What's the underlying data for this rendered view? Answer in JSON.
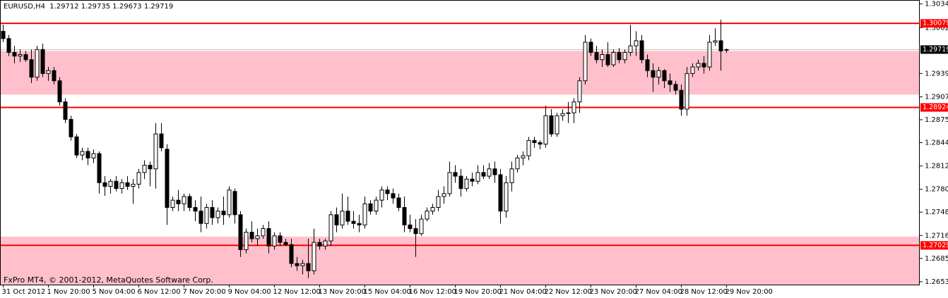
{
  "chart_data": {
    "type": "candlestick",
    "symbol": "EURUSD,H4",
    "watermark": "FxPro MT4, © 2001-2012, MetaQuotes Software Corp.",
    "categories": [
      "31 Oct 2012",
      null,
      null,
      null,
      null,
      null,
      null,
      null,
      "1 Nov 20:00",
      null,
      null,
      null,
      null,
      null,
      null,
      null,
      "5 Nov 04:00",
      null,
      null,
      null,
      null,
      null,
      null,
      null,
      "6 Nov 12:00",
      null,
      null,
      null,
      null,
      null,
      null,
      null,
      "7 Nov 20:00",
      null,
      null,
      null,
      null,
      null,
      null,
      null,
      "9 Nov 04:00",
      null,
      null,
      null,
      null,
      null,
      null,
      null,
      "12 Nov 12:00",
      null,
      null,
      null,
      null,
      null,
      null,
      null,
      "13 Nov 20:00",
      null,
      null,
      null,
      null,
      null,
      null,
      null,
      "15 Nov 04:00",
      null,
      null,
      null,
      null,
      null,
      null,
      null,
      "16 Nov 12:00",
      null,
      null,
      null,
      null,
      null,
      null,
      null,
      "19 Nov 20:00",
      null,
      null,
      null,
      null,
      null,
      null,
      null,
      "21 Nov 04:00",
      null,
      null,
      null,
      null,
      null,
      null,
      null,
      "22 Nov 12:00",
      null,
      null,
      null,
      null,
      null,
      null,
      null,
      "23 Nov 20:00",
      null,
      null,
      null,
      null,
      null,
      null,
      null,
      "27 Nov 04:00",
      null,
      null,
      null,
      null,
      null,
      null,
      null,
      "28 Nov 12:00",
      null,
      null,
      null,
      null,
      null,
      null,
      null,
      "29 Nov 20:00"
    ],
    "open": [
      1.2997,
      1.2987,
      1.2968,
      1.2963,
      1.2965,
      1.2958,
      1.2934,
      1.2972,
      1.2939,
      1.2943,
      1.2929,
      1.29,
      1.2876,
      1.2852,
      1.2827,
      1.2832,
      1.2823,
      1.2829,
      1.2789,
      1.2784,
      1.2791,
      1.2781,
      1.2789,
      1.2784,
      1.2787,
      1.2803,
      1.2813,
      1.2808,
      1.2856,
      1.2835,
      1.2755,
      1.2765,
      1.276,
      1.277,
      1.2755,
      1.275,
      1.2733,
      1.2755,
      1.2741,
      1.275,
      1.2745,
      1.2777,
      1.2745,
      1.2697,
      1.2721,
      1.2712,
      1.2716,
      1.2726,
      1.2702,
      1.2716,
      1.2707,
      1.2704,
      1.2678,
      1.2675,
      1.2678,
      1.2668,
      1.2707,
      1.2702,
      1.2709,
      1.2745,
      1.2731,
      1.275,
      1.2736,
      1.2733,
      1.2731,
      1.276,
      1.275,
      1.2765,
      1.2779,
      1.2774,
      1.2768,
      1.2755,
      1.2731,
      1.2726,
      1.2719,
      1.2739,
      1.275,
      1.2755,
      1.277,
      1.2774,
      1.2803,
      1.2798,
      1.2781,
      1.2794,
      1.2791,
      1.2803,
      1.2798,
      1.2808,
      1.28,
      1.275,
      1.2789,
      1.2808,
      1.2823,
      1.2826,
      1.2847,
      1.2844,
      1.2842,
      1.2881,
      1.2856,
      1.2881,
      1.2884,
      1.2885,
      1.29,
      1.2929,
      1.2982,
      1.2968,
      1.2958,
      1.2965,
      1.2951,
      1.2968,
      1.2958,
      1.2968,
      1.2977,
      1.2984,
      1.2958,
      1.2943,
      1.2934,
      1.2943,
      1.2929,
      1.2924,
      1.2916,
      1.289,
      1.2939,
      1.2948,
      1.2953,
      1.2948,
      1.2982,
      1.2984,
      1.29712
    ],
    "high": [
      1.3006,
      1.2992,
      1.2977,
      1.2972,
      1.297,
      1.2972,
      1.2977,
      1.298,
      1.2948,
      1.2948,
      1.2934,
      1.2905,
      1.2881,
      1.2856,
      1.2837,
      1.2837,
      1.2835,
      1.2832,
      1.2798,
      1.2794,
      1.2798,
      1.2794,
      1.2798,
      1.2794,
      1.2808,
      1.282,
      1.2818,
      1.2871,
      1.2871,
      1.2842,
      1.277,
      1.2779,
      1.2774,
      1.2774,
      1.2765,
      1.277,
      1.276,
      1.2765,
      1.2755,
      1.277,
      1.2784,
      1.2781,
      1.275,
      1.2726,
      1.2736,
      1.2726,
      1.2731,
      1.2736,
      1.2721,
      1.2721,
      1.2712,
      1.2712,
      1.2687,
      1.2683,
      1.2712,
      1.2726,
      1.2712,
      1.2712,
      1.275,
      1.2755,
      1.2774,
      1.277,
      1.275,
      1.2745,
      1.277,
      1.2765,
      1.277,
      1.2784,
      1.2784,
      1.2781,
      1.2774,
      1.277,
      1.2745,
      1.2739,
      1.2745,
      1.2755,
      1.276,
      1.2779,
      1.2784,
      1.2818,
      1.2813,
      1.2808,
      1.2798,
      1.2803,
      1.2813,
      1.2813,
      1.2816,
      1.2818,
      1.2808,
      1.2798,
      1.2818,
      1.2827,
      1.2832,
      1.2852,
      1.2852,
      1.2847,
      1.2895,
      1.289,
      1.2885,
      1.289,
      1.29,
      1.2905,
      1.2934,
      1.2992,
      1.2987,
      1.2977,
      1.2972,
      1.2982,
      1.2972,
      1.2974,
      1.2972,
      1.3006,
      1.2997,
      1.2992,
      1.2965,
      1.2953,
      1.2948,
      1.2945,
      1.2939,
      1.2929,
      1.2924,
      1.2948,
      1.2953,
      1.2958,
      1.2963,
      1.2992,
      1.3001,
      1.3013,
      1.29735
    ],
    "low": [
      1.2982,
      1.2963,
      1.2953,
      1.2955,
      1.2955,
      1.2926,
      1.2929,
      1.2934,
      1.2929,
      1.2924,
      1.2895,
      1.2871,
      1.2847,
      1.2823,
      1.282,
      1.2813,
      1.2816,
      1.2774,
      1.2771,
      1.2774,
      1.2777,
      1.2774,
      1.2779,
      1.276,
      1.2781,
      1.2794,
      1.2784,
      1.2781,
      1.2832,
      1.2731,
      1.275,
      1.275,
      1.275,
      1.275,
      1.2736,
      1.2721,
      1.2726,
      1.2731,
      1.2733,
      1.2731,
      1.2741,
      1.2733,
      1.2687,
      1.2692,
      1.2707,
      1.2702,
      1.2712,
      1.2692,
      1.2697,
      1.2702,
      1.2702,
      1.2673,
      1.2668,
      1.2663,
      1.2658,
      1.2663,
      1.2697,
      1.2697,
      1.2702,
      1.2721,
      1.2726,
      1.2731,
      1.2726,
      1.2721,
      1.2726,
      1.2745,
      1.2745,
      1.2755,
      1.2765,
      1.276,
      1.275,
      1.2721,
      1.2721,
      1.2687,
      1.2716,
      1.2736,
      1.2745,
      1.275,
      1.276,
      1.277,
      1.2789,
      1.277,
      1.2777,
      1.2784,
      1.2787,
      1.2794,
      1.2794,
      1.2789,
      1.2733,
      1.2741,
      1.2777,
      1.2803,
      1.2813,
      1.282,
      1.2837,
      1.2835,
      1.2837,
      1.2852,
      1.2852,
      1.2874,
      1.2871,
      1.2871,
      1.2885,
      1.2924,
      1.2963,
      1.2953,
      1.2948,
      1.2948,
      1.2948,
      1.2953,
      1.2953,
      1.2963,
      1.2963,
      1.2953,
      1.2934,
      1.2914,
      1.2924,
      1.2919,
      1.2914,
      1.291,
      1.2881,
      1.2881,
      1.2934,
      1.2943,
      1.2939,
      1.2943,
      1.2977,
      1.2943,
      1.29673
    ],
    "close": [
      1.2987,
      1.2968,
      1.2963,
      1.2965,
      1.2958,
      1.2934,
      1.2972,
      1.2939,
      1.2943,
      1.2929,
      1.29,
      1.2876,
      1.2852,
      1.2827,
      1.2832,
      1.2823,
      1.2829,
      1.2789,
      1.2784,
      1.2791,
      1.2781,
      1.2789,
      1.2784,
      1.2787,
      1.2803,
      1.2813,
      1.2808,
      1.2856,
      1.2837,
      1.2755,
      1.2765,
      1.276,
      1.277,
      1.2755,
      1.275,
      1.2733,
      1.2755,
      1.2741,
      1.275,
      1.2745,
      1.2779,
      1.2745,
      1.2697,
      1.2721,
      1.2712,
      1.2716,
      1.2726,
      1.2702,
      1.2716,
      1.2707,
      1.2704,
      1.2678,
      1.2675,
      1.2678,
      1.2668,
      1.2707,
      1.2702,
      1.2709,
      1.2745,
      1.2731,
      1.275,
      1.2736,
      1.2733,
      1.2731,
      1.276,
      1.275,
      1.2765,
      1.2779,
      1.2774,
      1.2768,
      1.2755,
      1.2731,
      1.2726,
      1.2719,
      1.2739,
      1.275,
      1.2755,
      1.277,
      1.2774,
      1.2803,
      1.2798,
      1.2781,
      1.2794,
      1.2791,
      1.2803,
      1.2798,
      1.2808,
      1.28,
      1.275,
      1.2789,
      1.2808,
      1.2823,
      1.2826,
      1.2847,
      1.2844,
      1.2842,
      1.2881,
      1.2856,
      1.2881,
      1.2884,
      1.2885,
      1.29,
      1.2929,
      1.2982,
      1.2968,
      1.2958,
      1.2965,
      1.2951,
      1.2968,
      1.2958,
      1.2968,
      1.2977,
      1.2984,
      1.2958,
      1.2943,
      1.2934,
      1.2943,
      1.2929,
      1.2924,
      1.2916,
      1.289,
      1.2939,
      1.2948,
      1.2953,
      1.2948,
      1.2982,
      1.2984,
      1.297,
      1.29719
    ],
    "ylim": [
      1.2649,
      1.304
    ],
    "yticks": [
      1.30345,
      {
        "value": 1.3002,
        "label": "1.30020"
      },
      {
        "value": 1.2939,
        "label": "1.29390"
      },
      {
        "value": 1.2907,
        "label": "1.29070"
      },
      1.28755,
      {
        "value": 1.2844,
        "label": "1.28440"
      },
      {
        "value": 1.2812,
        "label": "1.28120"
      },
      {
        "value": 1.278,
        "label": "1.27800"
      },
      1.27485,
      1.27165,
      {
        "value": 1.2685,
        "label": "1.26850"
      },
      {
        "value": 1.2653,
        "label": "1.26530"
      }
    ],
    "levels": [
      1.30079,
      1.28924,
      1.27029
    ],
    "level_color": "#ff0000",
    "current_price": 1.29719,
    "current_color": "#c0c0c0",
    "zones": [
      [
        1.291,
        1.297
      ],
      [
        1.264,
        1.2715
      ]
    ],
    "zone_color": "#ffc0cb",
    "up_color": "#ffffff",
    "down_color": "#000000"
  }
}
